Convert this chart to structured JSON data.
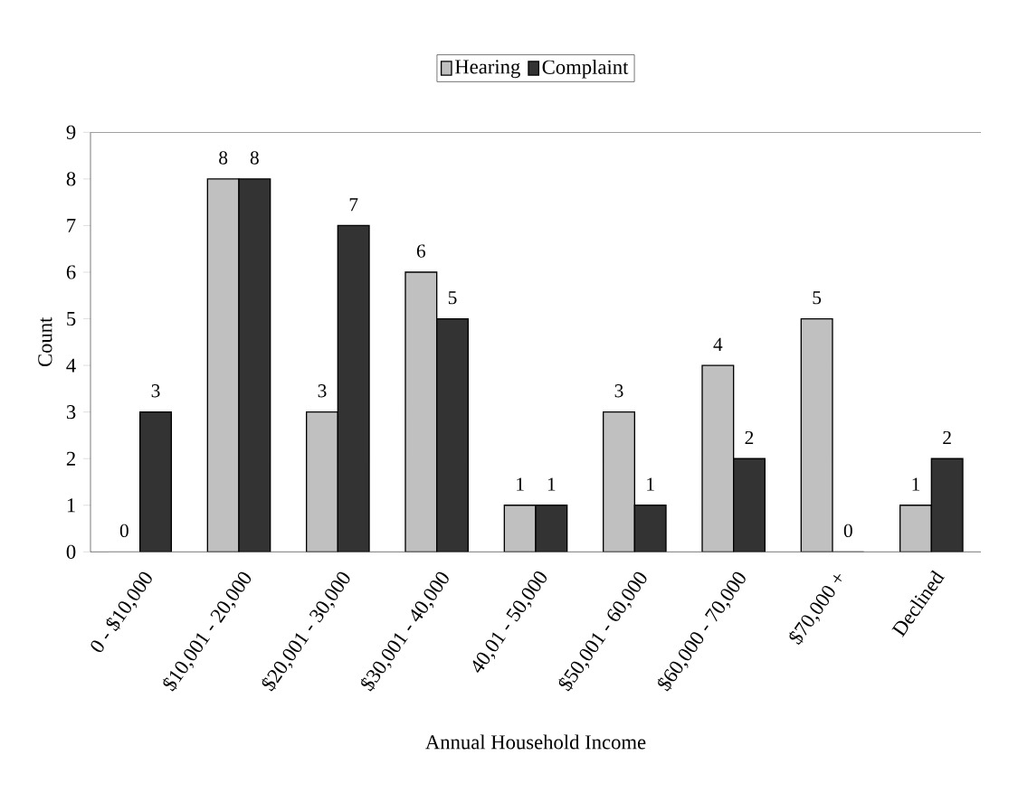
{
  "chart_data": {
    "type": "bar",
    "xlabel": "Annual Household Income",
    "ylabel": "Count",
    "categories": [
      "0 - $10,000",
      "$10,001 - 20,000",
      "$20,001 - 30,000",
      "$30,001 - 40,000",
      "40,01 - 50,000",
      "$50,001 - 60,000",
      "$60,000 - 70,000",
      "$70,000 +",
      "Declined"
    ],
    "series": [
      {
        "name": "Hearing",
        "color": "#c0c0c0",
        "values": [
          0,
          8,
          3,
          6,
          1,
          3,
          4,
          5,
          1
        ]
      },
      {
        "name": "Complaint",
        "color": "#333333",
        "values": [
          3,
          8,
          7,
          5,
          1,
          1,
          2,
          0,
          2
        ]
      }
    ],
    "ylim": [
      0,
      9
    ],
    "yticks": [
      0,
      1,
      2,
      3,
      4,
      5,
      6,
      7,
      8,
      9
    ],
    "data_labels": true,
    "legend": "top"
  }
}
